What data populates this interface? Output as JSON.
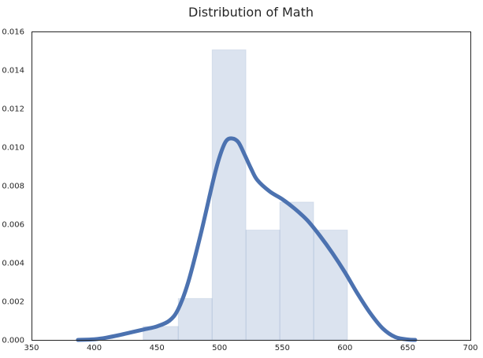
{
  "chart_data": {
    "type": "histogram",
    "title": "Distribution of Math",
    "xlabel": "",
    "ylabel": "",
    "xlim": [
      350,
      700
    ],
    "ylim": [
      0,
      0.016
    ],
    "x_ticks": [
      "350",
      "400",
      "450",
      "500",
      "550",
      "600",
      "650",
      "700"
    ],
    "y_ticks": [
      "0.000",
      "0.002",
      "0.004",
      "0.006",
      "0.008",
      "0.010",
      "0.012",
      "0.014",
      "0.016"
    ],
    "grid": false,
    "color": "#4c72b0",
    "bins": [
      {
        "x0": 439,
        "x1": 467,
        "density": 0.0007
      },
      {
        "x0": 467,
        "x1": 494,
        "density": 0.00215
      },
      {
        "x0": 494,
        "x1": 521,
        "density": 0.01505
      },
      {
        "x0": 521,
        "x1": 548,
        "density": 0.0057
      },
      {
        "x0": 548,
        "x1": 575,
        "density": 0.00715
      },
      {
        "x0": 575,
        "x1": 602,
        "density": 0.0057
      }
    ],
    "kde": {
      "x": [
        387,
        400,
        410,
        420,
        430,
        440,
        450,
        460,
        467,
        475,
        485,
        495,
        500,
        505,
        510,
        515,
        520,
        525,
        530,
        540,
        550,
        560,
        570,
        580,
        590,
        600,
        610,
        620,
        630,
        640,
        650,
        656
      ],
      "y": [
        0.0,
        3e-05,
        0.00012,
        0.00025,
        0.0004,
        0.00055,
        0.0007,
        0.001,
        0.0016,
        0.003,
        0.0055,
        0.0083,
        0.0095,
        0.0103,
        0.01045,
        0.01025,
        0.0096,
        0.0089,
        0.0083,
        0.0077,
        0.0073,
        0.0068,
        0.0062,
        0.0054,
        0.0045,
        0.0035,
        0.0024,
        0.0014,
        0.0006,
        0.00015,
        2e-05,
        0.0
      ]
    }
  }
}
